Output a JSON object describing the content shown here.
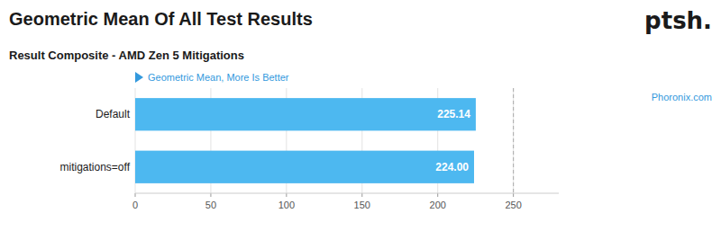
{
  "chart_data": {
    "type": "bar",
    "orientation": "horizontal",
    "title": "Geometric Mean Of All Test Results",
    "subtitle": "Result Composite - AMD Zen 5 Mitigations",
    "annotations": [
      "Geometric Mean, More Is Better",
      "Phoronix.com",
      "ptsh."
    ],
    "categories": [
      "mitigations=off",
      "Default"
    ],
    "values": [
      224.0,
      225.14
    ],
    "value_labels": [
      "224.00",
      "225.14"
    ],
    "data_labels": true,
    "color": "#4db8f0",
    "xlim": [
      0,
      280
    ],
    "xticks": [
      0,
      50,
      100,
      150,
      200,
      250
    ],
    "reference_lines": [
      250
    ],
    "grid": true
  }
}
